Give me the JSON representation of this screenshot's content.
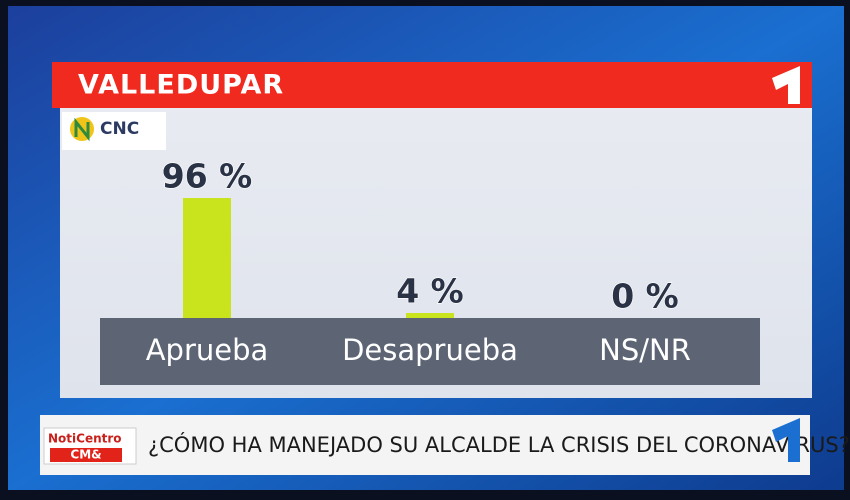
{
  "chart_data": {
    "type": "bar",
    "title": "VALLEDUPAR",
    "categories": [
      "Aprueba",
      "Desaprueba",
      "NS/NR"
    ],
    "values": [
      96,
      4,
      0
    ],
    "value_labels": [
      "96 %",
      "4 %",
      "0 %"
    ],
    "color": "#c9e41c",
    "ylim": [
      0,
      100
    ]
  },
  "source_logo": "CNC",
  "ticker": {
    "brand": "NotiCentro",
    "sub_brand": "CM&",
    "question": "¿CÓMO HA MANEJADO SU ALCALDE LA CRISIS DEL CORONAVIRUS?"
  }
}
